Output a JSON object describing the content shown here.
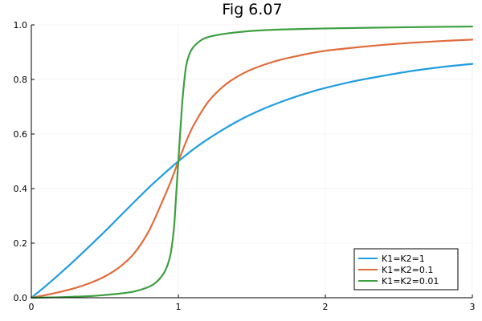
{
  "chart_data": {
    "type": "line",
    "title": "Fig 6.07",
    "xlabel": "",
    "ylabel": "",
    "xlim": [
      0,
      3
    ],
    "ylim": [
      0,
      1
    ],
    "x_ticks": [
      0,
      1,
      2,
      3
    ],
    "y_ticks": [
      0.0,
      0.2,
      0.4,
      0.6,
      0.8,
      1.0
    ],
    "x_tick_labels": [
      "0",
      "1",
      "2",
      "3"
    ],
    "y_tick_labels": [
      "0.0",
      "0.2",
      "0.4",
      "0.6",
      "0.8",
      "1.0"
    ],
    "grid": true,
    "legend_position": "bottom-right",
    "series": [
      {
        "name": "K1=K2=1",
        "color": "#1f9de0",
        "x": [
          0,
          0.1,
          0.2,
          0.3,
          0.4,
          0.5,
          0.6,
          0.7,
          0.8,
          0.9,
          1.0,
          1.1,
          1.2,
          1.3,
          1.4,
          1.5,
          1.6,
          1.7,
          1.8,
          1.9,
          2.0,
          2.2,
          2.4,
          2.6,
          2.8,
          3.0
        ],
        "y": [
          0,
          0.044,
          0.091,
          0.14,
          0.191,
          0.243,
          0.297,
          0.351,
          0.404,
          0.453,
          0.5,
          0.543,
          0.581,
          0.615,
          0.646,
          0.673,
          0.697,
          0.718,
          0.737,
          0.754,
          0.769,
          0.794,
          0.814,
          0.832,
          0.846,
          0.857
        ]
      },
      {
        "name": "K1=K2=0.1",
        "color": "#e16c3c",
        "x": [
          0,
          0.1,
          0.2,
          0.3,
          0.4,
          0.5,
          0.6,
          0.7,
          0.8,
          0.9,
          0.95,
          1.0,
          1.05,
          1.1,
          1.2,
          1.3,
          1.4,
          1.5,
          1.6,
          1.7,
          1.8,
          1.9,
          2.0,
          2.2,
          2.4,
          2.6,
          2.8,
          3.0
        ],
        "y": [
          0,
          0.01,
          0.022,
          0.036,
          0.054,
          0.078,
          0.112,
          0.163,
          0.245,
          0.364,
          0.428,
          0.5,
          0.568,
          0.628,
          0.716,
          0.772,
          0.81,
          0.837,
          0.857,
          0.873,
          0.885,
          0.896,
          0.905,
          0.917,
          0.927,
          0.935,
          0.941,
          0.946
        ]
      },
      {
        "name": "K1=K2=0.01",
        "color": "#3da040",
        "x": [
          0,
          0.1,
          0.2,
          0.3,
          0.4,
          0.5,
          0.6,
          0.7,
          0.8,
          0.85,
          0.9,
          0.93,
          0.95,
          0.97,
          0.98,
          0.99,
          1.0,
          1.01,
          1.02,
          1.03,
          1.05,
          1.07,
          1.1,
          1.15,
          1.2,
          1.3,
          1.4,
          1.5,
          1.7,
          2.0,
          2.5,
          3.0
        ],
        "y": [
          0,
          0.001,
          0.002,
          0.004,
          0.006,
          0.01,
          0.015,
          0.023,
          0.04,
          0.057,
          0.089,
          0.125,
          0.168,
          0.254,
          0.331,
          0.418,
          0.5,
          0.583,
          0.664,
          0.737,
          0.839,
          0.885,
          0.917,
          0.942,
          0.955,
          0.966,
          0.973,
          0.978,
          0.983,
          0.987,
          0.991,
          0.994
        ]
      }
    ]
  }
}
